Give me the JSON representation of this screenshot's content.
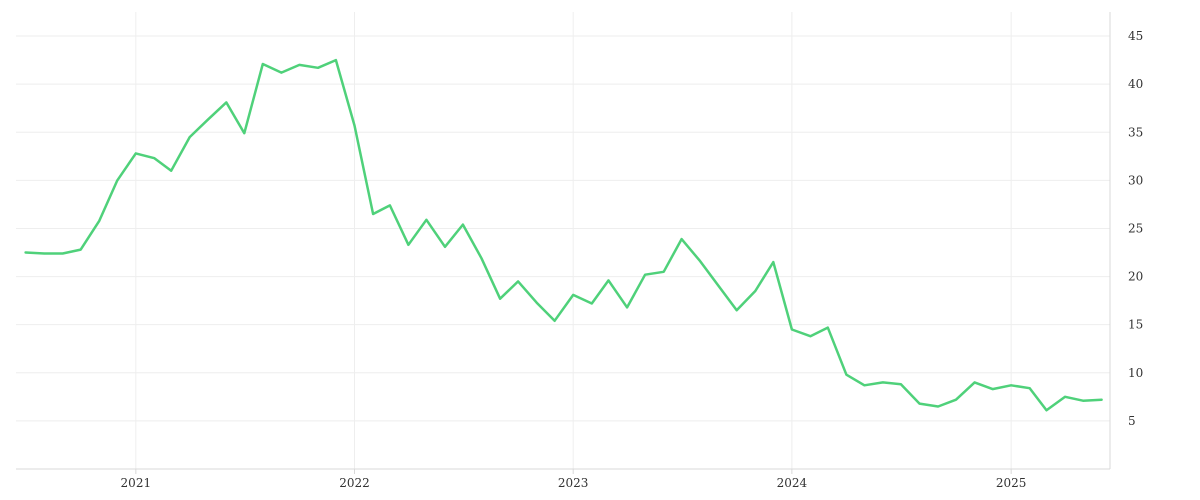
{
  "chart_data": {
    "type": "line",
    "title": "",
    "xlabel": "",
    "ylabel": "",
    "grid": true,
    "legend": "none",
    "line_color": "#4fd17a",
    "x_ticks": [
      "2021",
      "2022",
      "2023",
      "2024",
      "2025"
    ],
    "y_ticks": [
      5,
      10,
      15,
      20,
      25,
      30,
      35,
      40,
      45
    ],
    "ylim": [
      0,
      47.5
    ],
    "xlim": [
      "2020-06-15",
      "2025-06-15"
    ],
    "series": [
      {
        "x": [
          "2020-07-01",
          "2020-08-01",
          "2020-09-01",
          "2020-10-01",
          "2020-11-01",
          "2020-12-01",
          "2021-01-01",
          "2021-02-01",
          "2021-03-01",
          "2021-04-01",
          "2021-05-01",
          "2021-06-01",
          "2021-07-01",
          "2021-08-01",
          "2021-09-01",
          "2021-10-01",
          "2021-11-01",
          "2021-12-01",
          "2022-01-01",
          "2022-02-01",
          "2022-03-01",
          "2022-04-01",
          "2022-05-01",
          "2022-06-01",
          "2022-07-01",
          "2022-08-01",
          "2022-09-01",
          "2022-10-01",
          "2022-11-01",
          "2022-12-01",
          "2023-01-01",
          "2023-02-01",
          "2023-03-01",
          "2023-04-01",
          "2023-05-01",
          "2023-06-01",
          "2023-07-01",
          "2023-08-01",
          "2023-09-01",
          "2023-10-01",
          "2023-11-01",
          "2023-12-01",
          "2024-01-01",
          "2024-02-01",
          "2024-03-01",
          "2024-04-01",
          "2024-05-01",
          "2024-06-01",
          "2024-07-01",
          "2024-08-01",
          "2024-09-01",
          "2024-10-01",
          "2024-11-01",
          "2024-12-01",
          "2025-01-01",
          "2025-02-01",
          "2025-03-01",
          "2025-04-01",
          "2025-05-01",
          "2025-06-01"
        ],
        "values": [
          22.5,
          22.4,
          22.4,
          22.8,
          25.8,
          30.0,
          32.8,
          32.3,
          31.0,
          34.5,
          36.3,
          38.1,
          34.9,
          42.1,
          41.2,
          42.0,
          41.7,
          42.5,
          35.7,
          26.5,
          27.4,
          23.3,
          25.9,
          23.1,
          25.4,
          21.9,
          17.7,
          19.5,
          17.3,
          15.4,
          18.1,
          17.2,
          19.6,
          16.8,
          20.2,
          20.5,
          23.9,
          21.6,
          19.0,
          16.5,
          18.5,
          21.5,
          14.5,
          13.8,
          14.7,
          9.8,
          8.7,
          9.0,
          8.8,
          6.8,
          6.5,
          7.2,
          9.0,
          8.3,
          8.7,
          8.4,
          6.1,
          7.5,
          7.1,
          7.2
        ]
      }
    ]
  }
}
